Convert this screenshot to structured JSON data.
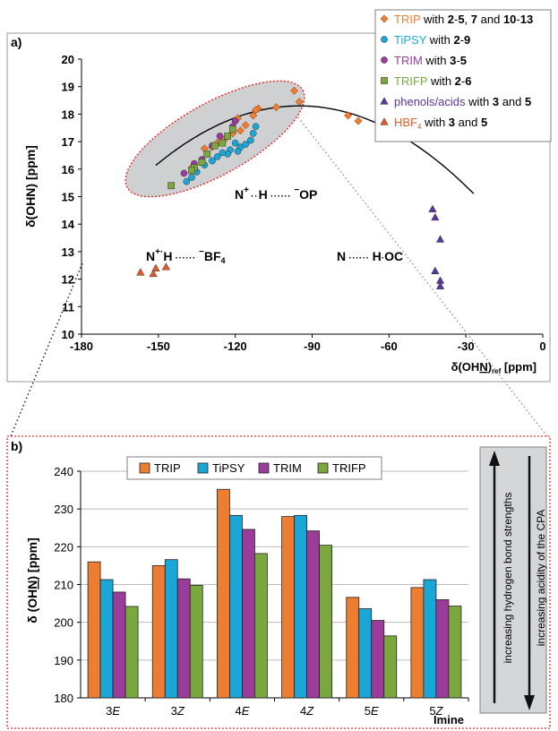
{
  "chart_data": [
    {
      "type": "scatter",
      "panel_label": "a)",
      "xlabel_main": "δ(OH",
      "xlabel_n": "N",
      "xlabel_close": ")",
      "xlabel_sub": "ref",
      "xlabel_unit": " [ppm]",
      "ylabel": "δ(OHN) [ppm]",
      "xlim": [
        -180,
        0
      ],
      "ylim": [
        10,
        20
      ],
      "x_ticks": [
        "-180",
        "-150",
        "-120",
        "-90",
        "-60",
        "-30",
        "0"
      ],
      "y_ticks": [
        "10",
        "11",
        "12",
        "13",
        "14",
        "15",
        "16",
        "17",
        "18",
        "19",
        "20"
      ],
      "legend_position": "top-right",
      "legend": [
        {
          "name": "TRIP",
          "text": " with ",
          "bold": "2",
          "t2": "-",
          "b2": "5",
          "t3": ", ",
          "b3": "7",
          "t4": " and ",
          "b4": "10",
          "t5": "-",
          "b5": "13",
          "color": "#ed7d31",
          "marker": "diamond"
        },
        {
          "name": "TiPSY",
          "text": " with  ",
          "bold": "2",
          "t2": "-",
          "b2": "9",
          "color": "#1aa7d8",
          "marker": "circle"
        },
        {
          "name": "TRIM",
          "text": " with ",
          "bold": "3",
          "t2": "-",
          "b2": "5",
          "color": "#9b3c9b",
          "marker": "circle"
        },
        {
          "name": "TRIFP",
          "text": " with ",
          "bold": "2",
          "t2": "-",
          "b2": "6",
          "color": "#7aa83e",
          "marker": "square"
        },
        {
          "name": "phenols/acids",
          "text": " with ",
          "bold": "3",
          "t2": " and ",
          "b2": "5",
          "color": "#5b35a3",
          "marker": "triangle"
        },
        {
          "name": "HBF",
          "sub": "4",
          "text": " with ",
          "bold": "3",
          "t2": " and ",
          "b2": "5",
          "color": "#e2592a",
          "marker": "triangle"
        }
      ],
      "annotations": {
        "op": {
          "n": "N",
          "plus": "+",
          "h": "H",
          "minus": "−",
          "op": "OP"
        },
        "bf": {
          "n": "N",
          "plus": "+",
          "h": "H",
          "minus": "−",
          "bf": "BF",
          "sub": "4"
        },
        "oc": {
          "n": "N",
          "h": "H",
          "oc": "OC"
        }
      },
      "series": [
        {
          "name": "TRIP",
          "color": "#ed7d31",
          "marker": "diamond",
          "points": [
            [
              -97,
              18.85
            ],
            [
              -95,
              18.45
            ],
            [
              -104,
              18.25
            ],
            [
              -111,
              18.2
            ],
            [
              -112,
              18.15
            ],
            [
              -113,
              17.95
            ],
            [
              -119,
              17.85
            ],
            [
              -116,
              17.6
            ],
            [
              -118,
              17.4
            ],
            [
              -121,
              17.3
            ],
            [
              -124,
              17.1
            ],
            [
              -127,
              16.95
            ],
            [
              -129,
              16.8
            ],
            [
              -132,
              16.75
            ],
            [
              -76,
              17.95
            ],
            [
              -72,
              17.75
            ],
            [
              -137,
              16.05
            ]
          ]
        },
        {
          "name": "TiPSY",
          "color": "#1aa7d8",
          "marker": "circle",
          "points": [
            [
              -112,
              17.55
            ],
            [
              -113,
              17.3
            ],
            [
              -114,
              17.05
            ],
            [
              -116,
              16.9
            ],
            [
              -118,
              16.8
            ],
            [
              -119,
              16.65
            ],
            [
              -120,
              16.95
            ],
            [
              -122,
              16.7
            ],
            [
              -123,
              16.55
            ],
            [
              -125,
              16.6
            ],
            [
              -127,
              16.45
            ],
            [
              -129,
              16.3
            ],
            [
              -132,
              16.15
            ],
            [
              -135,
              15.9
            ],
            [
              -137,
              15.7
            ],
            [
              -139,
              15.55
            ]
          ]
        },
        {
          "name": "TRIM",
          "color": "#9b3c9b",
          "marker": "circle",
          "points": [
            [
              -120,
              17.75
            ],
            [
              -121,
              17.55
            ],
            [
              -126,
              17.2
            ],
            [
              -129,
              16.85
            ],
            [
              -133,
              16.35
            ],
            [
              -136,
              16.2
            ],
            [
              -140,
              15.85
            ]
          ]
        },
        {
          "name": "TRIFP",
          "color": "#7aa83e",
          "marker": "square",
          "points": [
            [
              -121,
              17.45
            ],
            [
              -123,
              17.2
            ],
            [
              -125,
              16.95
            ],
            [
              -128,
              16.85
            ],
            [
              -131,
              16.55
            ],
            [
              -133,
              16.25
            ],
            [
              -136,
              16.05
            ],
            [
              -137,
              15.95
            ],
            [
              -145,
              15.4
            ]
          ]
        },
        {
          "name": "phenols/acids",
          "color": "#5b35a3",
          "marker": "triangle",
          "points": [
            [
              -43,
              14.55
            ],
            [
              -42,
              14.25
            ],
            [
              -40,
              13.45
            ],
            [
              -42,
              12.3
            ],
            [
              -40,
              11.95
            ],
            [
              -40,
              11.75
            ]
          ]
        },
        {
          "name": "HBF4",
          "color": "#e2592a",
          "marker": "triangle",
          "points": [
            [
              -157,
              12.25
            ],
            [
              -152,
              12.2
            ],
            [
              -151,
              12.4
            ],
            [
              -147,
              12.45
            ]
          ]
        }
      ],
      "fit_curve": {
        "vertex_x": -95,
        "vertex_y": 18.3,
        "a": -0.00069,
        "x_range": [
          -151,
          -27
        ]
      }
    },
    {
      "type": "bar",
      "panel_label": "b)",
      "ylabel_main": "δ (OH",
      "ylabel_n": "N",
      "ylabel_close": ") [ppm]",
      "xlabel": "Imine",
      "ylim": [
        180,
        240
      ],
      "y_ticks": [
        "180",
        "190",
        "200",
        "210",
        "220",
        "230",
        "240"
      ],
      "grid": true,
      "legend_position": "top",
      "categories": [
        {
          "num": "3",
          "iso": "E"
        },
        {
          "num": "3",
          "iso": "Z"
        },
        {
          "num": "4",
          "iso": "E"
        },
        {
          "num": "4",
          "iso": "Z"
        },
        {
          "num": "5",
          "iso": "E"
        },
        {
          "num": "5",
          "iso": "Z"
        }
      ],
      "series": [
        {
          "name": "TRIP",
          "color": "#ed7d31",
          "values": [
            216.0,
            215.0,
            235.2,
            228.0,
            206.6,
            209.2
          ]
        },
        {
          "name": "TiPSY",
          "color": "#1aa7d8",
          "values": [
            211.3,
            216.6,
            228.3,
            228.3,
            203.6,
            211.3
          ]
        },
        {
          "name": "TRIM",
          "color": "#9b3c9b",
          "values": [
            208.0,
            211.5,
            224.6,
            224.2,
            200.5,
            206.0
          ]
        },
        {
          "name": "TRIFP",
          "color": "#7aa83e",
          "values": [
            204.2,
            209.8,
            218.2,
            220.4,
            196.4,
            204.3
          ]
        }
      ],
      "arrows": {
        "up": "increasing hydrogen bond strengths",
        "down": "increasing acidity of the CPA"
      }
    }
  ]
}
